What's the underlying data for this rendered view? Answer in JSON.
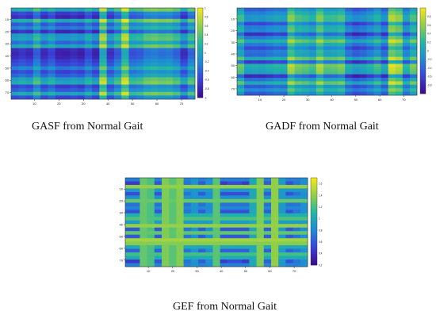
{
  "colormap": [
    "#3e0b8f",
    "#3a44d8",
    "#1f8bd6",
    "#20b7a4",
    "#8fcf4a",
    "#f4e61e"
  ],
  "chart_data": [
    {
      "type": "heatmap",
      "caption": "GASF from Normal Gait",
      "xticks": [
        "10",
        "20",
        "30",
        "40",
        "50",
        "60",
        "70"
      ],
      "yticks": [
        "10",
        "20",
        "30",
        "40",
        "50",
        "60",
        "70"
      ],
      "colorbar_ticks": [
        "1",
        "0.8",
        "0.6",
        "0.4",
        "0.2",
        "0",
        "-0.2",
        "-0.4",
        "-0.6",
        "-0.8",
        "-1"
      ],
      "value_range": [
        -1,
        1
      ],
      "rows": 75,
      "cols": 75
    },
    {
      "type": "heatmap",
      "caption": "GADF from Normal Gait",
      "xticks": [
        "10",
        "20",
        "30",
        "40",
        "50",
        "60",
        "70"
      ],
      "yticks": [
        "10",
        "20",
        "30",
        "40",
        "50",
        "60",
        "70"
      ],
      "colorbar_ticks": [
        "0.8",
        "0.6",
        "0.4",
        "0.2",
        "0",
        "-0.2",
        "-0.4",
        "-0.6",
        "-0.8"
      ],
      "value_range": [
        -1,
        1
      ],
      "rows": 75,
      "cols": 75
    },
    {
      "type": "heatmap",
      "caption": "GEF from Normal Gait",
      "xticks": [
        "10",
        "20",
        "30",
        "40",
        "50",
        "60",
        "70"
      ],
      "yticks": [
        "10",
        "20",
        "30",
        "40",
        "50",
        "60",
        "70"
      ],
      "colorbar_ticks": [
        "1.6",
        "1.4",
        "1.2",
        "1",
        "0.8",
        "0.6",
        "0.4",
        "0.2"
      ],
      "value_range": [
        0.2,
        1.7
      ],
      "rows": 75,
      "cols": 75
    }
  ]
}
